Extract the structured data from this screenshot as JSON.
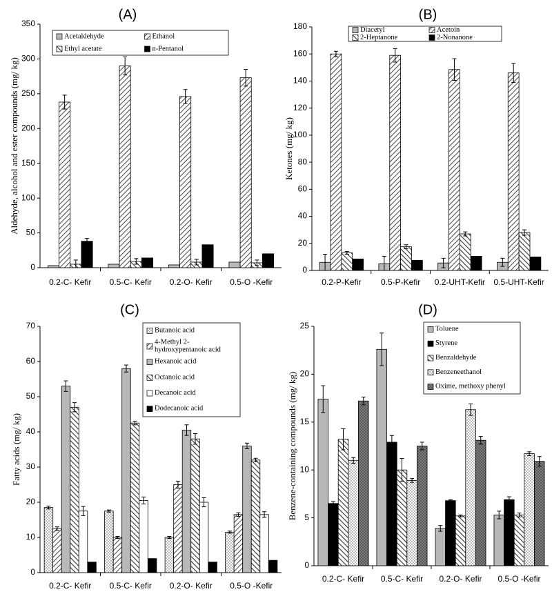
{
  "patterns": [
    "#b8b8b8",
    "fwd",
    "back",
    "#000000",
    "dots",
    "white",
    "hatchgrey"
  ],
  "chart_data": [
    {
      "type": "bar",
      "panel": "(A)",
      "ylabel": "Aldehyde, alcohol and ester compounds (mg/ kg)",
      "ylim": [
        0,
        350
      ],
      "ytick_step": 50,
      "categories": [
        "0.2-C- Kefir",
        "0.5-C- Kefir",
        "0.2-O- Kefir",
        "0.5-O -Kefir"
      ],
      "legend_columns": 2,
      "series": [
        {
          "name": "Acetaldehyde",
          "pattern": "#b8b8b8",
          "values": [
            3,
            5,
            4,
            8
          ],
          "errors": [
            0,
            0,
            0,
            0
          ]
        },
        {
          "name": "Ethanol",
          "pattern": "fwd",
          "values": [
            238,
            290,
            246,
            273
          ],
          "errors": [
            10,
            13,
            10,
            12
          ]
        },
        {
          "name": "Ethyl acetate",
          "pattern": "back",
          "values": [
            5,
            9,
            8,
            7
          ],
          "errors": [
            6,
            4,
            4,
            4
          ]
        },
        {
          "name": "n-Pentanol",
          "pattern": "#000000",
          "values": [
            38,
            14,
            33,
            20
          ],
          "errors": [
            4,
            0,
            0,
            0
          ]
        }
      ]
    },
    {
      "type": "bar",
      "panel": "(B)",
      "ylabel": "Ketones (mg/ kg)",
      "ylim": [
        0,
        180
      ],
      "ytick_step": 20,
      "categories": [
        "0.2-P-Kefir",
        "0.5-P-Kefir",
        "0.2-UHT-Kefir",
        "0.5-UHT-Kefir"
      ],
      "legend_columns": 2,
      "series": [
        {
          "name": "Diacetyl",
          "pattern": "#b8b8b8",
          "values": [
            6,
            5,
            5.5,
            6
          ],
          "errors": [
            6,
            5.5,
            3.5,
            3
          ]
        },
        {
          "name": "Acetoin",
          "pattern": "fwd",
          "values": [
            160,
            159,
            148.5,
            146
          ],
          "errors": [
            2,
            5,
            8,
            7
          ]
        },
        {
          "name": "2-Heptanone",
          "pattern": "back",
          "values": [
            13,
            17.5,
            27,
            28
          ],
          "errors": [
            1,
            1.5,
            1.5,
            2
          ]
        },
        {
          "name": "2-Nonanone",
          "pattern": "#000000",
          "values": [
            8.5,
            7.5,
            10.5,
            10
          ],
          "errors": [
            0,
            0,
            0,
            0
          ]
        }
      ]
    },
    {
      "type": "bar",
      "panel": "(C)",
      "ylabel": "Fatty acids (mg/ kg)",
      "ylim": [
        0,
        70
      ],
      "ytick_step": 10,
      "categories": [
        "0.2-C- Kefir",
        "0.5-C- Kefir",
        "0.2-O- Kefir",
        "0.5-O -Kefir"
      ],
      "legend_columns": 1,
      "series": [
        {
          "name": "Butanoic acid",
          "pattern": "dots",
          "values": [
            18.5,
            17.5,
            10,
            11.5
          ],
          "errors": [
            0.4,
            0.3,
            0.3,
            0.3
          ]
        },
        {
          "name": "4-Methyl 2-hydroxypentanoic acid",
          "legend_lines": [
            "4-Methyl 2-",
            "hydroxypentanoic acid"
          ],
          "pattern": "fwd",
          "values": [
            12.5,
            10,
            25,
            16.5
          ],
          "errors": [
            0.5,
            0.3,
            1,
            0.5
          ]
        },
        {
          "name": "Hexanoic acid",
          "pattern": "#b8b8b8",
          "values": [
            53,
            58,
            40.5,
            36
          ],
          "errors": [
            1.5,
            1,
            1.5,
            0.8
          ]
        },
        {
          "name": "Octanoic acid",
          "pattern": "back",
          "values": [
            47,
            42.5,
            38,
            32
          ],
          "errors": [
            1.3,
            0.5,
            1.5,
            0.5
          ]
        },
        {
          "name": "Decanoic acid",
          "pattern": "white",
          "values": [
            17.5,
            20.5,
            20,
            16.5
          ],
          "errors": [
            1.3,
            1,
            1.3,
            0.8
          ]
        },
        {
          "name": "Dodecanoic acid",
          "pattern": "#000000",
          "values": [
            3,
            4,
            3,
            3.5
          ],
          "errors": [
            0,
            0,
            0,
            0
          ]
        }
      ]
    },
    {
      "type": "bar",
      "panel": "(D)",
      "ylabel": "Benzene-containing compounds (mg/ kg)",
      "ylim": [
        0,
        25
      ],
      "ytick_step": 5,
      "categories": [
        "0.2-C- Kefir",
        "0.5-C- Kefir",
        "0.2-O- Kefir",
        "0.5-O -Kefir"
      ],
      "legend_columns": 1,
      "series": [
        {
          "name": "Toluene",
          "pattern": "#b8b8b8",
          "values": [
            17.4,
            22.6,
            3.9,
            5.3
          ],
          "errors": [
            1.4,
            1.7,
            0.3,
            0.4
          ]
        },
        {
          "name": "Styrene",
          "pattern": "#000000",
          "values": [
            6.5,
            12.9,
            6.8,
            6.9
          ],
          "errors": [
            0.2,
            0.7,
            0.1,
            0.3
          ]
        },
        {
          "name": "Benzaldehyde",
          "pattern": "back",
          "values": [
            13.2,
            10,
            5.2,
            5.3
          ],
          "errors": [
            1.1,
            1.2,
            0.1,
            0.2
          ]
        },
        {
          "name": "Benzeneethanol",
          "pattern": "dots",
          "values": [
            11,
            8.9,
            16.3,
            11.7
          ],
          "errors": [
            0.3,
            0.2,
            0.6,
            0.2
          ]
        },
        {
          "name": "Oxime, methoxy phenyl",
          "pattern": "hatchgrey",
          "values": [
            17.2,
            12.5,
            13.1,
            10.9
          ],
          "errors": [
            0.4,
            0.4,
            0.4,
            0.5
          ]
        }
      ]
    }
  ]
}
